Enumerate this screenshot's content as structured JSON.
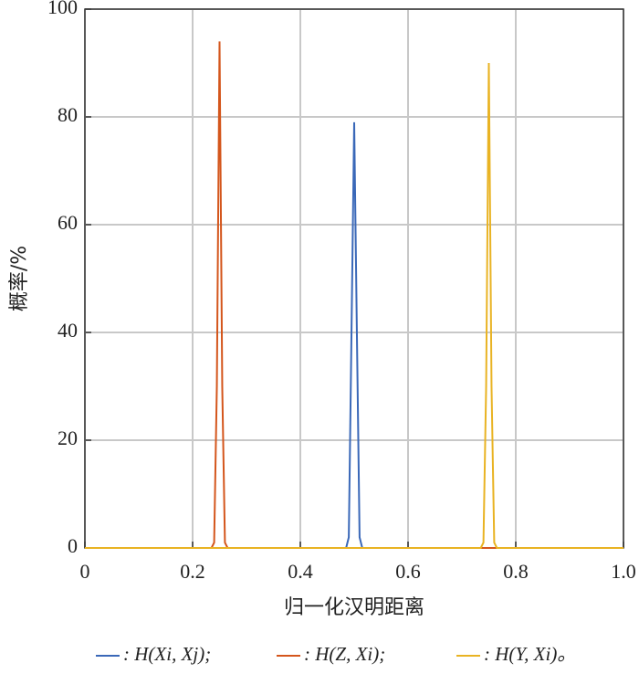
{
  "chart_data": {
    "type": "line",
    "xlabel": "归一化汉明距离",
    "ylabel": "概率/%",
    "x": [
      0,
      0.235,
      0.24,
      0.245,
      0.25,
      0.255,
      0.26,
      0.265,
      0.485,
      0.49,
      0.495,
      0.5,
      0.505,
      0.51,
      0.515,
      0.735,
      0.74,
      0.745,
      0.75,
      0.755,
      0.76,
      0.765,
      1
    ],
    "series": [
      {
        "name": ": H(Xi, Xj);",
        "color": "#3a68b8",
        "values": [
          0,
          0,
          0,
          0,
          0,
          0,
          0,
          0,
          0,
          2,
          40,
          79,
          40,
          2,
          0,
          0,
          0,
          0,
          0,
          0,
          0,
          0,
          0
        ]
      },
      {
        "name": ": H(Z, Xi);",
        "color": "#d4561c",
        "values": [
          0,
          0,
          1,
          30,
          94,
          30,
          1,
          0,
          0,
          0,
          0,
          0,
          0,
          0,
          0,
          0,
          0,
          0,
          0,
          0,
          0,
          0,
          0
        ]
      },
      {
        "name": ": H(Y, Xi)。",
        "color": "#e9b323",
        "values": [
          0,
          0,
          0,
          0,
          0,
          0,
          0,
          0,
          0,
          0,
          0,
          0,
          0,
          0,
          0,
          0,
          1,
          30,
          90,
          30,
          1,
          0,
          0
        ]
      }
    ],
    "xlim": [
      0,
      1
    ],
    "xticks": [
      0,
      0.2,
      0.4,
      0.6,
      0.8,
      {
        "value": 1,
        "label": "1.0"
      }
    ],
    "ylim": [
      0,
      100
    ],
    "yticks": [
      0,
      20,
      40,
      60,
      80,
      100
    ],
    "grid": true
  }
}
